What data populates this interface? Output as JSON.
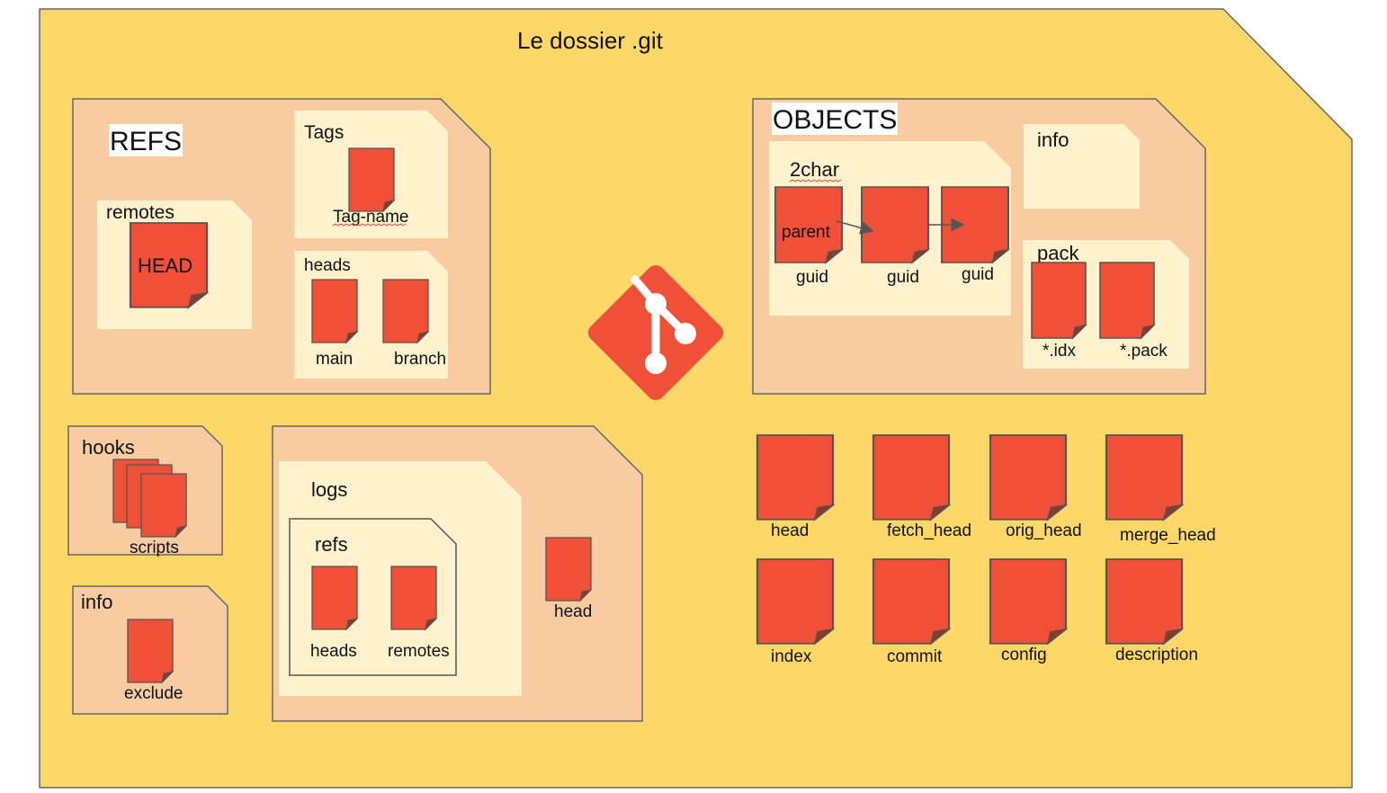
{
  "title": "Le dossier .git",
  "colors": {
    "outer": "#fdd868",
    "folder": "#f8cba0",
    "subfolder": "#fff2cc",
    "file": "#f05038",
    "stroke": "#555555",
    "git_logo": "#f05038"
  },
  "refs": {
    "title": "REFS",
    "remotes": {
      "label": "remotes",
      "file": "HEAD"
    },
    "tags": {
      "label": "Tags",
      "file": "Tag-name"
    },
    "heads": {
      "label": "heads",
      "files": [
        "main",
        "branch"
      ]
    }
  },
  "objects": {
    "title": "OBJECTS",
    "twochar": {
      "label": "2char",
      "files": [
        "parent",
        "guid",
        "guid",
        "guid"
      ]
    },
    "info": {
      "label": "info"
    },
    "pack": {
      "label": "pack",
      "files": [
        "*.idx",
        "*.pack"
      ]
    }
  },
  "hooks": {
    "label": "hooks",
    "file": "scripts"
  },
  "info": {
    "label": "info",
    "file": "exclude"
  },
  "logs_folder": {
    "logs": "logs",
    "refs": "refs",
    "refs_files": [
      "heads",
      "remotes"
    ],
    "head_file": "head"
  },
  "root_files": [
    "head",
    "fetch_head",
    "orig_head",
    "merge_head",
    "index",
    "commit",
    "config",
    "description"
  ],
  "icons": [
    "git-logo-icon"
  ]
}
